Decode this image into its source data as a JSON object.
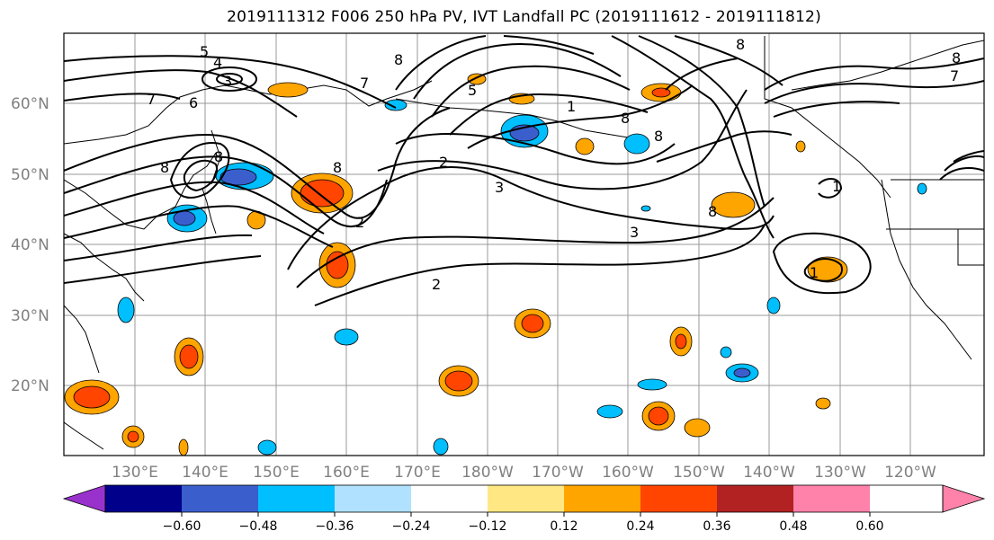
{
  "title": "2019111312 F006 250 hPa PV, IVT Landfall PC (2019111612 - 2019111812)",
  "lat_labels": [
    "60°N",
    "50°N",
    "40°N",
    "30°N",
    "20°N"
  ],
  "lon_labels": [
    "130°E",
    "140°E",
    "150°E",
    "160°E",
    "170°E",
    "180°W",
    "170°W",
    "160°W",
    "150°W",
    "140°W",
    "130°W",
    "120°W"
  ],
  "contour_labels": [
    "5",
    "4",
    "3",
    "7",
    "6",
    "8",
    "8",
    "8",
    "7",
    "8",
    "2",
    "3",
    "1",
    "8",
    "8",
    "2",
    "3",
    "1",
    "7",
    "8",
    "5",
    "2",
    "8",
    "1",
    "8"
  ],
  "colorbar": {
    "ticks": [
      "−0.60",
      "−0.48",
      "−0.36",
      "−0.24",
      "−0.12",
      "0.12",
      "0.24",
      "0.36",
      "0.48",
      "0.60"
    ],
    "colors": [
      "#9932cc",
      "#00008b",
      "#3a5fcd",
      "#00bfff",
      "#b0e2ff",
      "#ffffff",
      "#ffe883",
      "#ffa500",
      "#ff4500",
      "#b22222",
      "#ff82ab"
    ]
  }
}
